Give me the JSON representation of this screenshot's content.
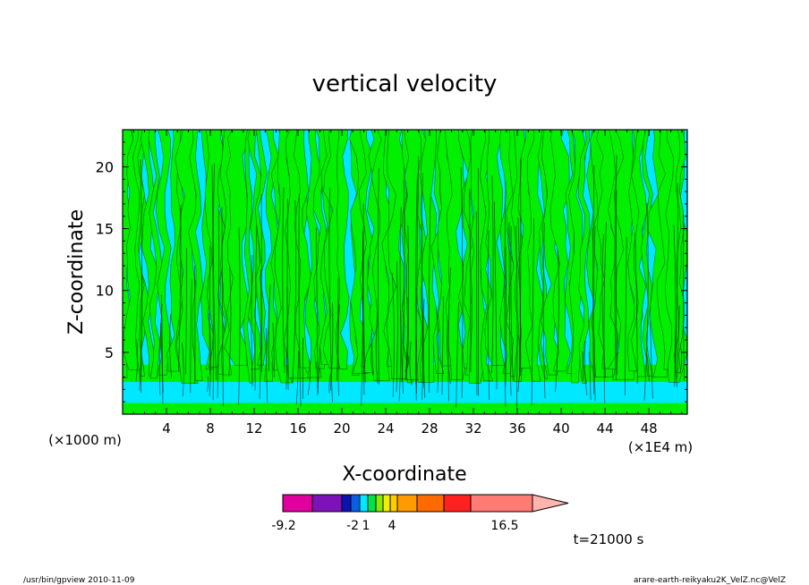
{
  "chart_data": {
    "type": "heatmap",
    "title": "vertical velocity",
    "xlabel": "X-coordinate",
    "ylabel": "Z-coordinate",
    "x_unit_left": "(×1000 m)",
    "x_unit_right": "(×1E4 m)",
    "xlim": [
      0,
      51.5
    ],
    "ylim": [
      0,
      23
    ],
    "x_ticks": [
      4,
      8,
      12,
      16,
      20,
      24,
      28,
      32,
      36,
      40,
      44,
      48
    ],
    "y_ticks": [
      5,
      10,
      15,
      20
    ],
    "colorbar": {
      "segment_colors": [
        "#e0009e",
        "#7d12b9",
        "#0a14b0",
        "#0a5ee6",
        "#00e8ff",
        "#00e24a",
        "#86ea00",
        "#f0f000",
        "#ffcc00",
        "#ff9a00",
        "#ff6a00",
        "#ff2020",
        "#ff7c74",
        "#ffb4ae"
      ],
      "tick_labels": [
        "-9.2",
        "-2",
        "1",
        "4",
        "16.5"
      ],
      "dominant_colors": [
        "#00e8ff",
        "#00f000"
      ]
    },
    "time_label": "t=21000 s"
  },
  "footer": {
    "left": "/usr/bin/gpview   2010-11-09",
    "right": "arare-earth-reikyaku2K_VelZ.nc@VelZ"
  }
}
